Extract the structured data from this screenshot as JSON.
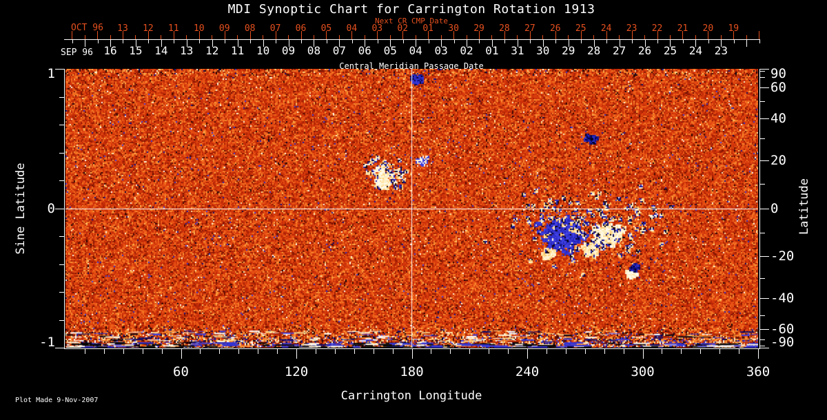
{
  "title": "MDI Synoptic Chart for Carrington Rotation 1913",
  "colors": {
    "background": "#000000",
    "text": "#ffffff",
    "accent_red": "#e6501e"
  },
  "top_axis": {
    "caption": "Next CR CMP Date",
    "month_label": "OCT 96"
  },
  "cmp_axis": {
    "month_label": "SEP 96",
    "caption": "Central Meridian Passage Date"
  },
  "left_axis": {
    "title": "Sine Latitude",
    "tick_labels": [
      "1",
      "0",
      "-1"
    ]
  },
  "right_axis": {
    "title": "Latitude",
    "tick_labels": [
      "90",
      "60",
      "40",
      "20",
      "0",
      "-20",
      "-40",
      "-60",
      "-90"
    ]
  },
  "bottom_axis": {
    "title": "Carrington Longitude",
    "tick_labels": [
      "60",
      "120",
      "180",
      "240",
      "300",
      "360"
    ]
  },
  "footer": {
    "plot_made": "Plot Made  9-Nov-2007"
  },
  "chart_data": {
    "type": "heatmap",
    "title": "MDI Synoptic Chart for Carrington Rotation 1913",
    "xlabel": "Carrington Longitude",
    "ylabel_left": "Sine Latitude",
    "ylabel_right": "Latitude",
    "x_range": [
      0,
      360
    ],
    "y_range_sine": [
      -1,
      1
    ],
    "x_major_ticks": [
      60,
      120,
      180,
      240,
      300,
      360
    ],
    "x_minor_step": 10,
    "left_major_ticks_sine": [
      1,
      0,
      -1
    ],
    "left_minor_step_sine": 0.2,
    "right_labeled_latitudes": [
      90,
      60,
      40,
      20,
      0,
      -20,
      -40,
      -60,
      -90
    ],
    "right_minor_latitudes": [
      80,
      70,
      50,
      30,
      10,
      -10,
      -30,
      -50,
      -70,
      -80
    ],
    "top_axis_dates": [
      "13",
      "12",
      "11",
      "10",
      "09",
      "08",
      "07",
      "06",
      "05",
      "04",
      "03",
      "02",
      "01",
      "30",
      "29",
      "28",
      "27",
      "26",
      "25",
      "24",
      "23",
      "22",
      "21",
      "20",
      "19"
    ],
    "top_axis_month": "OCT 96",
    "cmp_axis_dates": [
      "16",
      "15",
      "14",
      "13",
      "12",
      "11",
      "10",
      "09",
      "08",
      "07",
      "06",
      "05",
      "04",
      "03",
      "02",
      "01",
      "31",
      "30",
      "29",
      "28",
      "27",
      "26",
      "25",
      "24",
      "23"
    ],
    "cmp_axis_month": "SEP 96",
    "crosshair": {
      "longitude": 180,
      "sine_latitude": 0
    },
    "palette": {
      "weak_field_background": "#d83a0c",
      "moderate_positive": "#ffcc66",
      "strong_positive": "#ffffff",
      "moderate_negative": "#7a1400",
      "strong_negative": "#000000",
      "extreme_negative": "#2a2ab4"
    },
    "noise_seed": 1913,
    "noise_description": "granular salt-and-pepper magnetogram noise, mostly weak orange/red field; noise amplitude strongly enhanced in a streaky band below sine latitude -0.85 and slightly enhanced at the top edge",
    "features": [
      {
        "name": "major-bipolar-active-region",
        "longitude": 258,
        "latitude": -12,
        "description": "large black negative-polarity patch with blue fringe adjacent to bright white positive-polarity patch"
      },
      {
        "name": "small-active-region",
        "longitude": 294,
        "latitude": -28,
        "description": "small white positive patch with dark negative companion"
      },
      {
        "name": "decaying-plage-region",
        "longitude": 166,
        "latitude": 14,
        "description": "mottled cluster of bright and dark specks just left of the 180-degree meridian line"
      },
      {
        "name": "speck-cluster-right-of-meridian",
        "longitude": 185,
        "latitude": 20,
        "description": "few bright and dark blue specks right of the meridian line"
      },
      {
        "name": "dark-speck-cluster-top",
        "longitude": 183,
        "latitude": 68,
        "description": "small cluster of dark specks near top center"
      },
      {
        "name": "dark-speck-cluster",
        "longitude": 273,
        "latitude": 30,
        "description": "small cluster of dark specks"
      }
    ]
  }
}
